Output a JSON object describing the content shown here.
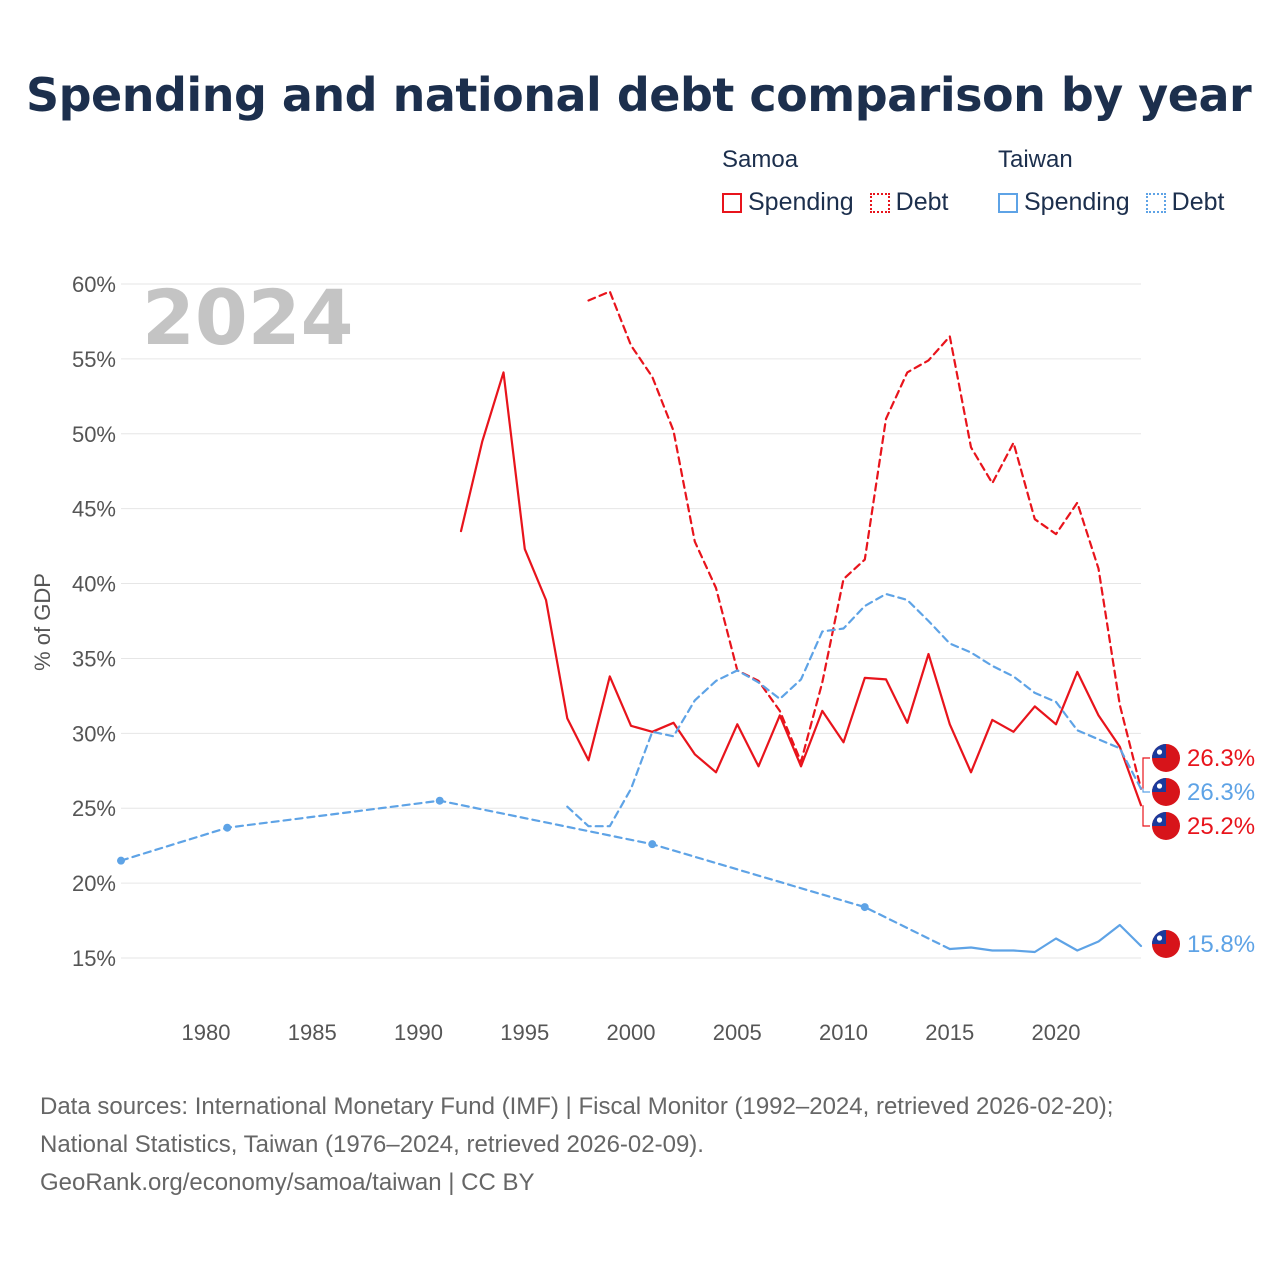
{
  "title": "Spending and national debt comparison by year",
  "legend": {
    "groups": [
      {
        "name": "Samoa",
        "color": "#e8141c",
        "items": [
          {
            "label": "Spending",
            "style": "solid"
          },
          {
            "label": "Debt",
            "style": "dotted"
          }
        ]
      },
      {
        "name": "Taiwan",
        "color": "#5ea3e6",
        "items": [
          {
            "label": "Spending",
            "style": "solid"
          },
          {
            "label": "Debt",
            "style": "dotted"
          }
        ]
      }
    ]
  },
  "footer": {
    "line1": "Data sources: International Monetary Fund (IMF) | Fiscal Monitor (1992–2024, retrieved 2026-02-20);",
    "line2": "National Statistics, Taiwan (1976–2024, retrieved 2026-02-09).",
    "line3": "GeoRank.org/economy/samoa/taiwan | CC BY"
  },
  "chart_data": {
    "type": "line",
    "title": "Spending and national debt comparison by year",
    "year_label": "2024",
    "ylabel": "% of GDP",
    "xlim": [
      1976,
      2024
    ],
    "ylim": [
      15,
      60
    ],
    "x_ticks": [
      1980,
      1985,
      1990,
      1995,
      2000,
      2005,
      2010,
      2015,
      2020
    ],
    "y_ticks": [
      15,
      20,
      25,
      30,
      35,
      40,
      45,
      50,
      55,
      60
    ],
    "y_tick_labels": [
      "15%",
      "20%",
      "25%",
      "30%",
      "35%",
      "40%",
      "45%",
      "50%",
      "55%",
      "60%"
    ],
    "grid": true,
    "series": [
      {
        "name": "Samoa Spending",
        "color": "#e8141c",
        "dash": "solid",
        "x": [
          1992,
          1993,
          1994,
          1995,
          1996,
          1997,
          1998,
          1999,
          2000,
          2001,
          2002,
          2003,
          2004,
          2005,
          2006,
          2007,
          2008,
          2009,
          2010,
          2011,
          2012,
          2013,
          2014,
          2015,
          2016,
          2017,
          2018,
          2019,
          2020,
          2021,
          2022,
          2023,
          2024
        ],
        "y": [
          43.5,
          49.5,
          54.1,
          42.3,
          38.9,
          31.0,
          28.2,
          33.8,
          30.5,
          30.1,
          30.7,
          28.6,
          27.4,
          30.6,
          27.8,
          31.2,
          27.8,
          31.5,
          29.4,
          33.7,
          33.6,
          30.7,
          35.3,
          30.6,
          27.4,
          30.9,
          30.1,
          31.8,
          30.6,
          34.1,
          31.2,
          29.1,
          25.2
        ],
        "end_label": "25.2%"
      },
      {
        "name": "Samoa Debt",
        "color": "#e8141c",
        "dash": "dashed",
        "x": [
          1998,
          1999,
          2000,
          2001,
          2002,
          2003,
          2004,
          2005,
          2006,
          2007,
          2008,
          2009,
          2010,
          2011,
          2012,
          2013,
          2014,
          2015,
          2016,
          2017,
          2018,
          2019,
          2020,
          2021,
          2022,
          2023,
          2024
        ],
        "y": [
          58.9,
          59.5,
          55.9,
          53.8,
          50.2,
          42.8,
          39.7,
          34.2,
          33.5,
          31.5,
          28.1,
          33.4,
          40.3,
          41.6,
          51.0,
          54.1,
          54.9,
          56.5,
          49.1,
          46.7,
          49.4,
          44.3,
          43.3,
          45.4,
          41.0,
          31.9,
          26.3
        ],
        "end_label": "26.3%"
      },
      {
        "name": "Taiwan Spending",
        "color": "#5ea3e6",
        "dash": "solid",
        "x": [
          2015,
          2016,
          2017,
          2018,
          2019,
          2020,
          2021,
          2022,
          2023,
          2024
        ],
        "y": [
          15.6,
          15.7,
          15.5,
          15.5,
          15.4,
          16.3,
          15.5,
          16.1,
          17.2,
          15.8
        ],
        "end_label": "15.8%"
      },
      {
        "name": "Taiwan Spending (estimated)",
        "color": "#5ea3e6",
        "dash": "dashed",
        "x": [
          1976,
          1981,
          1991,
          2001,
          2011,
          2015
        ],
        "y": [
          21.5,
          23.7,
          25.5,
          22.6,
          18.4,
          15.6
        ],
        "markers": [
          1976,
          1981,
          1991,
          2001,
          2011
        ]
      },
      {
        "name": "Taiwan Debt",
        "color": "#5ea3e6",
        "dash": "dashed",
        "x": [
          1997,
          1998,
          1999,
          2000,
          2001,
          2002,
          2003,
          2004,
          2005,
          2006,
          2007,
          2008,
          2009,
          2010,
          2011,
          2012,
          2013,
          2014,
          2015,
          2016,
          2017,
          2018,
          2019,
          2020,
          2021,
          2022,
          2023,
          2024
        ],
        "y": [
          25.1,
          23.8,
          23.8,
          26.3,
          30.1,
          29.8,
          32.2,
          33.5,
          34.2,
          33.4,
          32.3,
          33.6,
          36.8,
          37.0,
          38.5,
          39.3,
          38.9,
          37.5,
          36.0,
          35.4,
          34.5,
          33.8,
          32.7,
          32.1,
          30.2,
          29.6,
          29.0,
          26.3
        ],
        "end_label": "26.3%"
      }
    ],
    "end_markers": [
      {
        "label": "26.3%",
        "color": "#e8141c",
        "value": 26.3
      },
      {
        "label": "26.3%",
        "color": "#5ea3e6",
        "value": 26.3
      },
      {
        "label": "25.2%",
        "color": "#e8141c",
        "value": 25.2
      },
      {
        "label": "15.8%",
        "color": "#5ea3e6",
        "value": 15.8
      }
    ]
  }
}
